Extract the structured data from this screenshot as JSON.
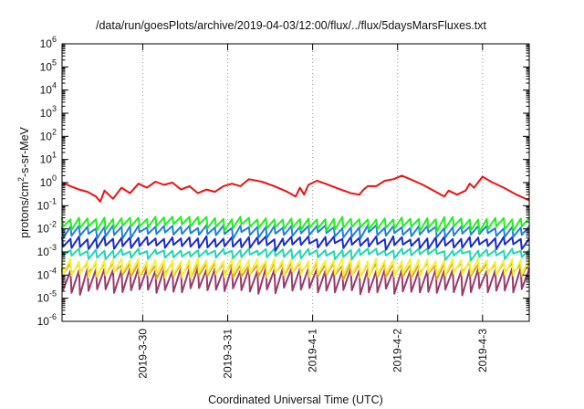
{
  "chart_data": {
    "type": "line",
    "title": "/data/run/goesPlots/archive/2019-04-03/12:00/flux/../flux/5daysMarsFluxes.txt",
    "xlabel": "Coordinated Universal Time (UTC)",
    "ylabel": {
      "pre": "protons/cm",
      "sup": "2",
      "post": "-s-sr-MeV"
    },
    "x_unit": "days since 2019-03-29 00:00 UTC",
    "xlim": [
      0.05,
      5.55
    ],
    "ylog": true,
    "ylim_exp": [
      -6,
      6
    ],
    "y_ticks": [
      {
        "base": "10",
        "exp": "-6"
      },
      {
        "base": "10",
        "exp": "-5"
      },
      {
        "base": "10",
        "exp": "-4"
      },
      {
        "base": "10",
        "exp": "-3"
      },
      {
        "base": "10",
        "exp": "-2"
      },
      {
        "base": "10",
        "exp": "-1"
      },
      {
        "base": "10",
        "exp": "0"
      },
      {
        "base": "10",
        "exp": "1"
      },
      {
        "base": "10",
        "exp": "2"
      },
      {
        "base": "10",
        "exp": "3"
      },
      {
        "base": "10",
        "exp": "4"
      },
      {
        "base": "10",
        "exp": "5"
      },
      {
        "base": "10",
        "exp": "6"
      }
    ],
    "x_ticks": [
      {
        "label": "2019-3-30",
        "x": 1
      },
      {
        "label": "2019-3-31",
        "x": 2
      },
      {
        "label": "2019-4-1",
        "x": 3
      },
      {
        "label": "2019-4-2",
        "x": 4
      },
      {
        "label": "2019-4-3",
        "x": 5
      }
    ],
    "grid": true,
    "series": [
      {
        "color": "#ee1111",
        "points": [
          [
            0.05,
            1.0
          ],
          [
            0.15,
            0.7
          ],
          [
            0.25,
            0.5
          ],
          [
            0.35,
            0.4
          ],
          [
            0.45,
            0.25
          ],
          [
            0.5,
            0.15
          ],
          [
            0.55,
            0.45
          ],
          [
            0.65,
            0.2
          ],
          [
            0.75,
            0.6
          ],
          [
            0.85,
            0.35
          ],
          [
            0.95,
            0.9
          ],
          [
            1.05,
            0.6
          ],
          [
            1.15,
            1.1
          ],
          [
            1.25,
            0.8
          ],
          [
            1.35,
            1.0
          ],
          [
            1.45,
            0.5
          ],
          [
            1.55,
            0.7
          ],
          [
            1.65,
            0.35
          ],
          [
            1.75,
            0.5
          ],
          [
            1.85,
            0.4
          ],
          [
            1.95,
            0.7
          ],
          [
            2.05,
            0.9
          ],
          [
            2.15,
            0.7
          ],
          [
            2.25,
            1.4
          ],
          [
            2.4,
            1.1
          ],
          [
            2.55,
            0.7
          ],
          [
            2.7,
            0.4
          ],
          [
            2.8,
            0.25
          ],
          [
            2.85,
            0.6
          ],
          [
            2.9,
            0.3
          ],
          [
            2.95,
            0.8
          ],
          [
            3.05,
            1.2
          ],
          [
            3.15,
            0.9
          ],
          [
            3.3,
            0.55
          ],
          [
            3.45,
            0.35
          ],
          [
            3.55,
            0.3
          ],
          [
            3.6,
            0.5
          ],
          [
            3.65,
            0.7
          ],
          [
            3.75,
            0.7
          ],
          [
            3.85,
            1.2
          ],
          [
            3.95,
            1.4
          ],
          [
            4.05,
            2.0
          ],
          [
            4.15,
            1.4
          ],
          [
            4.3,
            0.8
          ],
          [
            4.45,
            0.4
          ],
          [
            4.55,
            0.25
          ],
          [
            4.6,
            0.45
          ],
          [
            4.7,
            0.3
          ],
          [
            4.8,
            0.45
          ],
          [
            4.85,
            0.9
          ],
          [
            4.9,
            0.6
          ],
          [
            5.0,
            1.8
          ],
          [
            5.1,
            1.1
          ],
          [
            5.25,
            0.6
          ],
          [
            5.4,
            0.3
          ],
          [
            5.55,
            0.17
          ]
        ]
      },
      {
        "color": "#22ee22",
        "period": 0.1,
        "level": 0.028,
        "dip": 0.4
      },
      {
        "color": "#1f7fe0",
        "period": 0.1,
        "level": 0.012,
        "dip": 0.45
      },
      {
        "color": "#1a2bd0",
        "period": 0.1,
        "level": 0.004,
        "dip": 0.45
      },
      {
        "color": "#22d8b0",
        "period": 0.1,
        "level": 0.0012,
        "dip": 0.55
      },
      {
        "color": "#f5f044",
        "period": 0.1,
        "level": 0.00045,
        "dip": 0.25
      },
      {
        "color": "#e0a428",
        "period": 0.1,
        "level": 0.0003,
        "dip": 0.35
      },
      {
        "color": "#9a3a6a",
        "period": 0.1,
        "level": 0.00018,
        "dip": 0.12
      }
    ]
  }
}
